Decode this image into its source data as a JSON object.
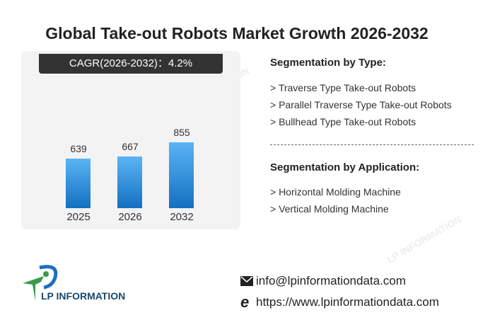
{
  "title": "Global Take-out Robots Market Growth 2026-2032",
  "cagr_label": "CAGR(2026-2032)：4.2%",
  "chart_data": {
    "type": "bar",
    "categories": [
      "2025",
      "2026",
      "2032"
    ],
    "values": [
      639,
      667,
      855
    ],
    "value_labels": [
      "639",
      "667",
      "855"
    ],
    "ylim": [
      0,
      855
    ]
  },
  "segmentation_type": {
    "heading": "Segmentation by Type:",
    "items": [
      "> Traverse Type Take-out Robots",
      "> Parallel Traverse Type Take-out Robots",
      "> Bullhead Type Take-out Robots"
    ]
  },
  "segmentation_application": {
    "heading": "Segmentation by Application:",
    "items": [
      "> Horizontal Molding Machine",
      "> Vertical Molding Machine"
    ]
  },
  "logo": {
    "text": "LP INFORMATION"
  },
  "watermark": "LP INFORMATION",
  "contact": {
    "email": "info@lpinformationdata.com",
    "website": "https://www.lpinformationdata.com"
  },
  "colors": {
    "bar_top": "#5ab4f5",
    "bar_bottom": "#1470c0",
    "logo_green": "#3a9a4a",
    "logo_blue": "#1e6fc0",
    "logo_text": "#1a4a6e"
  }
}
